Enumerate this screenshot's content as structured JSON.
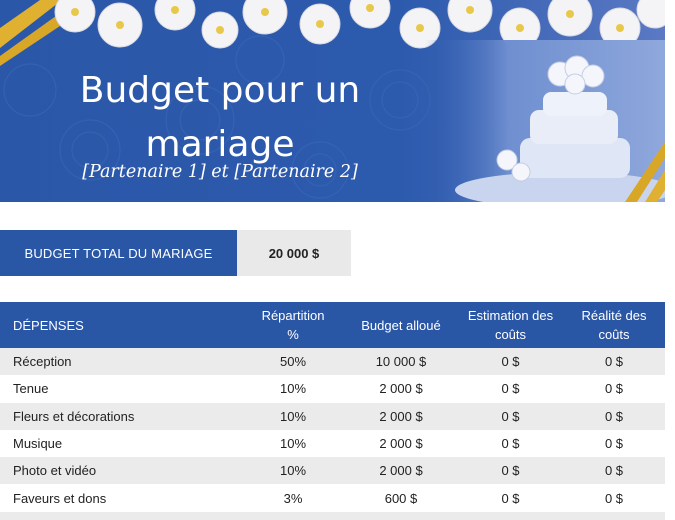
{
  "banner": {
    "title": "Budget pour un mariage",
    "subtitle": "[Partenaire 1] et [Partenaire 2]"
  },
  "total": {
    "label": "BUDGET TOTAL DU MARIAGE",
    "value": "20 000 $"
  },
  "table": {
    "headers": [
      "DÉPENSES",
      "Répartition %",
      "Budget alloué",
      "Estimation des coûts",
      "Réalité des coûts"
    ],
    "rows": [
      [
        "Réception",
        "50%",
        "10 000 $",
        "0 $",
        "0 $"
      ],
      [
        "Tenue",
        "10%",
        "2 000 $",
        "0 $",
        "0 $"
      ],
      [
        "Fleurs et décorations",
        "10%",
        "2 000 $",
        "0 $",
        "0 $"
      ],
      [
        "Musique",
        "10%",
        "2 000 $",
        "0 $",
        "0 $"
      ],
      [
        "Photo et vidéo",
        "10%",
        "2 000 $",
        "0 $",
        "0 $"
      ],
      [
        "Faveurs et dons",
        "3%",
        "600 $",
        "0 $",
        "0 $"
      ]
    ]
  },
  "colors": {
    "accent": "#2a56a6",
    "shade": "#ebebeb",
    "gold": "#e0b030"
  }
}
